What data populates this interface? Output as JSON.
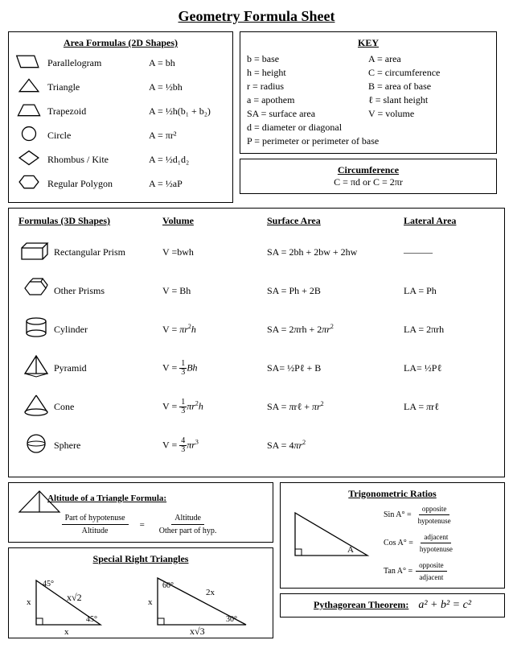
{
  "title": "Geometry Formula Sheet",
  "area2d": {
    "title": "Area Formulas (2D Shapes)",
    "rows": [
      {
        "name": "Parallelogram",
        "formula": "A = bh"
      },
      {
        "name": "Triangle",
        "formula": "A = ½bh"
      },
      {
        "name": "Trapezoid",
        "formula": "A = ½h(b₁ + b₂)"
      },
      {
        "name": "Circle",
        "formula": "A = πr²"
      },
      {
        "name": "Rhombus / Kite",
        "formula": "A = ½d₁d₂"
      },
      {
        "name": "Regular Polygon",
        "formula": "A = ½aP"
      }
    ]
  },
  "key": {
    "title": "KEY",
    "items": [
      "b = base",
      "A = area",
      "h = height",
      "C = circumference",
      "r = radius",
      "B = area of base",
      "a = apothem",
      "ℓ = slant height",
      "SA = surface area",
      "V = volume"
    ],
    "full_items": [
      "d = diameter or diagonal",
      "P = perimeter or perimeter of base"
    ]
  },
  "circumference": {
    "title": "Circumference",
    "formula": "C = πd or C = 2πr"
  },
  "threed": {
    "headers": {
      "name": "Formulas (3D Shapes)",
      "vol": "Volume",
      "sa": "Surface Area",
      "la": "Lateral Area"
    },
    "rows": [
      {
        "name": "Rectangular Prism",
        "vol": "V =bwh",
        "sa": "SA = 2bh + 2bw + 2hw",
        "la": "———"
      },
      {
        "name": "Other Prisms",
        "vol": "V = Bh",
        "sa": "SA = Ph + 2B",
        "la": "LA = Ph"
      },
      {
        "name": "Cylinder",
        "vol_html": "V = <i>πr</i><sup>2</sup><i>h</i>",
        "sa_html": "SA = 2<i>π</i>rh + 2<i>πr</i><sup>2</sup>",
        "la": "LA = 2πrh"
      },
      {
        "name": "Pyramid",
        "vol_frac": {
          "pre": "V = ",
          "n": "1",
          "d": "3",
          "post": "<i>Bh</i>"
        },
        "sa": "SA= ½Pℓ + B",
        "la": "LA= ½Pℓ"
      },
      {
        "name": "Cone",
        "vol_frac": {
          "pre": "V = ",
          "n": "1",
          "d": "3",
          "post": "<i>πr</i><sup>2</sup><i>h</i>"
        },
        "sa_html": "SA = <i>π</i>rℓ + <i>πr</i><sup>2</sup>",
        "la_html": "LA = <i>π</i>rℓ"
      },
      {
        "name": "Sphere",
        "vol_frac": {
          "pre": "V = ",
          "n": "4",
          "d": "3",
          "post": "<i>πr</i><sup>3</sup>"
        },
        "sa_html": "SA = 4<i>πr</i><sup>2</sup>",
        "la": ""
      }
    ]
  },
  "altitude": {
    "title": "Altitude of a Triangle Formula:",
    "l_top": "Part of hypotenuse",
    "l_bot": "Altitude",
    "eq": "=",
    "r_top": "Altitude",
    "r_bot": "Other part of hyp."
  },
  "srt": {
    "title": "Special Right Triangles",
    "t1": {
      "ang": "45°",
      "leg": "x",
      "hyp": "x√2"
    },
    "t2": {
      "ang1": "60°",
      "ang2": "30°",
      "leg": "x",
      "hyp": "2x",
      "base": "x√3"
    }
  },
  "trig": {
    "title": "Trigonometric Ratios",
    "label_A": "A",
    "items": [
      {
        "fn": "Sin A° =",
        "top": "opposite",
        "bot": "hypotenuse"
      },
      {
        "fn": "Cos A° =",
        "top": "adjacent",
        "bot": "hypotenuse"
      },
      {
        "fn": "Tan A° =",
        "top": "opposite",
        "bot": "adjacent"
      }
    ]
  },
  "pythagorean": {
    "label": "Pythagorean Theorem:",
    "eq": "a² + b² = c²"
  },
  "colors": {
    "border": "#000000",
    "bg": "#ffffff",
    "text": "#000000"
  }
}
